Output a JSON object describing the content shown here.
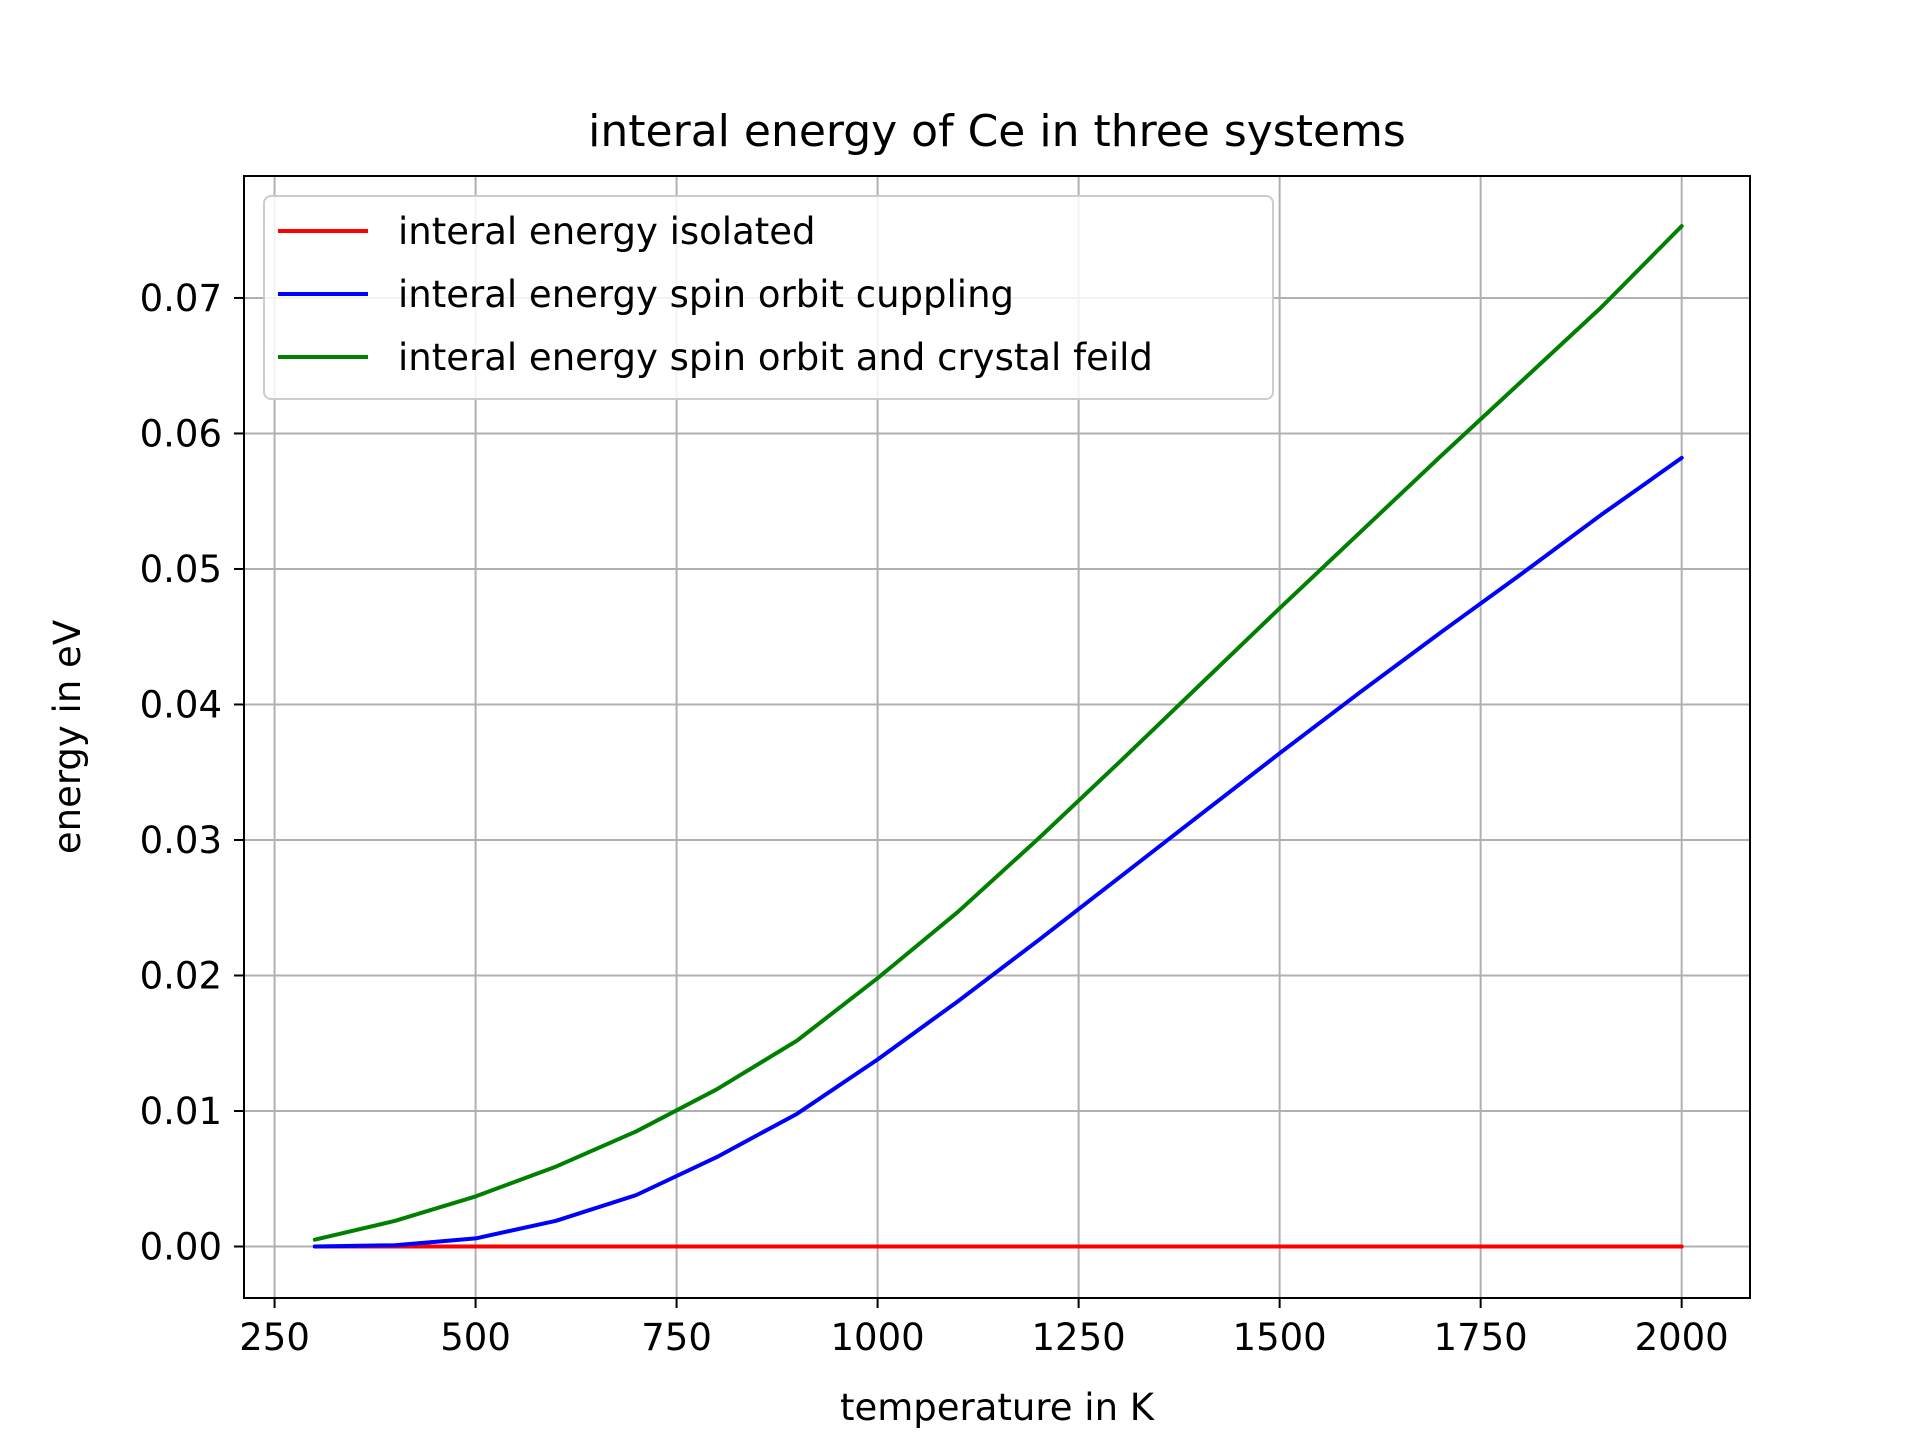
{
  "chart_data": {
    "type": "line",
    "title": "interal energy of Ce in three systems",
    "xlabel": "temperature in K",
    "ylabel": "energy in eV",
    "xlim": [
      212,
      2085
    ],
    "ylim": [
      -0.0038,
      0.079
    ],
    "xticks": [
      250,
      500,
      750,
      1000,
      1250,
      1500,
      1750,
      2000
    ],
    "xtick_labels": [
      "250",
      "500",
      "750",
      "1000",
      "1250",
      "1500",
      "1750",
      "2000"
    ],
    "yticks": [
      0.0,
      0.01,
      0.02,
      0.03,
      0.04,
      0.05,
      0.06,
      0.07
    ],
    "ytick_labels": [
      "0.00",
      "0.01",
      "0.02",
      "0.03",
      "0.04",
      "0.05",
      "0.06",
      "0.07"
    ],
    "grid": true,
    "legend_position": "upper-left",
    "x": [
      300,
      400,
      500,
      600,
      700,
      800,
      900,
      1000,
      1100,
      1200,
      1300,
      1400,
      1500,
      1600,
      1700,
      1800,
      1900,
      2000
    ],
    "series": [
      {
        "name": "interal energy isolated",
        "color": "#ff0000",
        "values": [
          0.0,
          0.0,
          0.0,
          0.0,
          0.0,
          0.0,
          0.0,
          0.0,
          0.0,
          0.0,
          0.0,
          0.0,
          0.0,
          0.0,
          0.0,
          0.0,
          0.0,
          0.0
        ]
      },
      {
        "name": "interal energy spin orbit cuppling",
        "color": "#0000ff",
        "values": [
          0.0,
          0.0001,
          0.0006,
          0.0019,
          0.0038,
          0.0066,
          0.0098,
          0.0138,
          0.0181,
          0.0226,
          0.0272,
          0.0318,
          0.0364,
          0.0409,
          0.0453,
          0.0496,
          0.054,
          0.0582
        ]
      },
      {
        "name": "interal energy spin orbit and crystal feild",
        "color": "#008000",
        "values": [
          0.0005,
          0.0019,
          0.0037,
          0.0059,
          0.0085,
          0.0116,
          0.0152,
          0.0198,
          0.0247,
          0.0301,
          0.0357,
          0.0414,
          0.0471,
          0.0527,
          0.0583,
          0.0638,
          0.0693,
          0.0753
        ]
      }
    ]
  }
}
